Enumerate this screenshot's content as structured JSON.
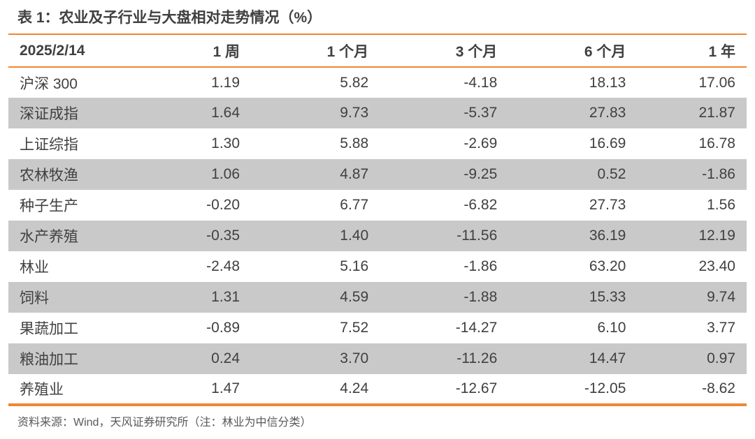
{
  "page": {
    "title": "表 1：农业及子行业与大盘相对走势情况（%）",
    "source_note": "资料来源：Wind，天风证券研究所（注：林业为中信分类）"
  },
  "table": {
    "columns": [
      "2025/2/14",
      "1 周",
      "1 个月",
      "3 个月",
      "6 个月",
      "1 年"
    ],
    "rows": [
      {
        "label": "沪深 300",
        "values": [
          "1.19",
          "5.82",
          "-4.18",
          "18.13",
          "17.06"
        ]
      },
      {
        "label": "深证成指",
        "values": [
          "1.64",
          "9.73",
          "-5.37",
          "27.83",
          "21.87"
        ]
      },
      {
        "label": "上证综指",
        "values": [
          "1.30",
          "5.88",
          "-2.69",
          "16.69",
          "16.78"
        ]
      },
      {
        "label": "农林牧渔",
        "values": [
          "1.06",
          "4.87",
          "-9.25",
          "0.52",
          "-1.86"
        ]
      },
      {
        "label": "种子生产",
        "values": [
          "-0.20",
          "6.77",
          "-6.82",
          "27.73",
          "1.56"
        ]
      },
      {
        "label": "水产养殖",
        "values": [
          "-0.35",
          "1.40",
          "-11.56",
          "36.19",
          "12.19"
        ]
      },
      {
        "label": "林业",
        "values": [
          "-2.48",
          "5.16",
          "-1.86",
          "63.20",
          "23.40"
        ]
      },
      {
        "label": "饲料",
        "values": [
          "1.31",
          "4.59",
          "-1.88",
          "15.33",
          "9.74"
        ]
      },
      {
        "label": "果蔬加工",
        "values": [
          "-0.89",
          "7.52",
          "-14.27",
          "6.10",
          "3.77"
        ]
      },
      {
        "label": "粮油加工",
        "values": [
          "0.24",
          "3.70",
          "-11.26",
          "14.47",
          "0.97"
        ]
      },
      {
        "label": "养殖业",
        "values": [
          "1.47",
          "4.24",
          "-12.67",
          "-12.05",
          "-8.62"
        ]
      }
    ]
  },
  "colors": {
    "accent_orange": "#EF8733",
    "row_stripe": "#C9C9C9",
    "text_main": "#404040",
    "text_footer": "#595959",
    "page_bg": "#FFFFFF"
  }
}
